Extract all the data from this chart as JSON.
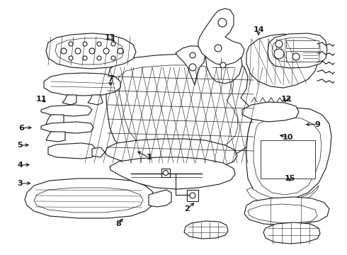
{
  "background_color": "#ffffff",
  "line_color": "#1a1a1a",
  "figsize": [
    4.9,
    3.6
  ],
  "dpi": 100,
  "label_positions": {
    "1": [
      0.43,
      0.618,
      0.39,
      0.59
    ],
    "2": [
      0.538,
      0.82,
      0.565,
      0.79
    ],
    "3": [
      0.058,
      0.72,
      0.095,
      0.718
    ],
    "4": [
      0.058,
      0.648,
      0.092,
      0.645
    ],
    "5": [
      0.058,
      0.57,
      0.09,
      0.568
    ],
    "6": [
      0.062,
      0.502,
      0.098,
      0.5
    ],
    "7": [
      0.318,
      0.308,
      0.318,
      0.345
    ],
    "8": [
      0.342,
      0.878,
      0.358,
      0.85
    ],
    "9": [
      0.915,
      0.488,
      0.875,
      0.488
    ],
    "10": [
      0.83,
      0.538,
      0.8,
      0.528
    ],
    "11": [
      0.12,
      0.388,
      0.135,
      0.408
    ],
    "12": [
      0.825,
      0.388,
      0.818,
      0.408
    ],
    "13": [
      0.318,
      0.148,
      0.335,
      0.168
    ],
    "14": [
      0.745,
      0.118,
      0.745,
      0.148
    ],
    "15": [
      0.835,
      0.7,
      0.835,
      0.718
    ]
  }
}
